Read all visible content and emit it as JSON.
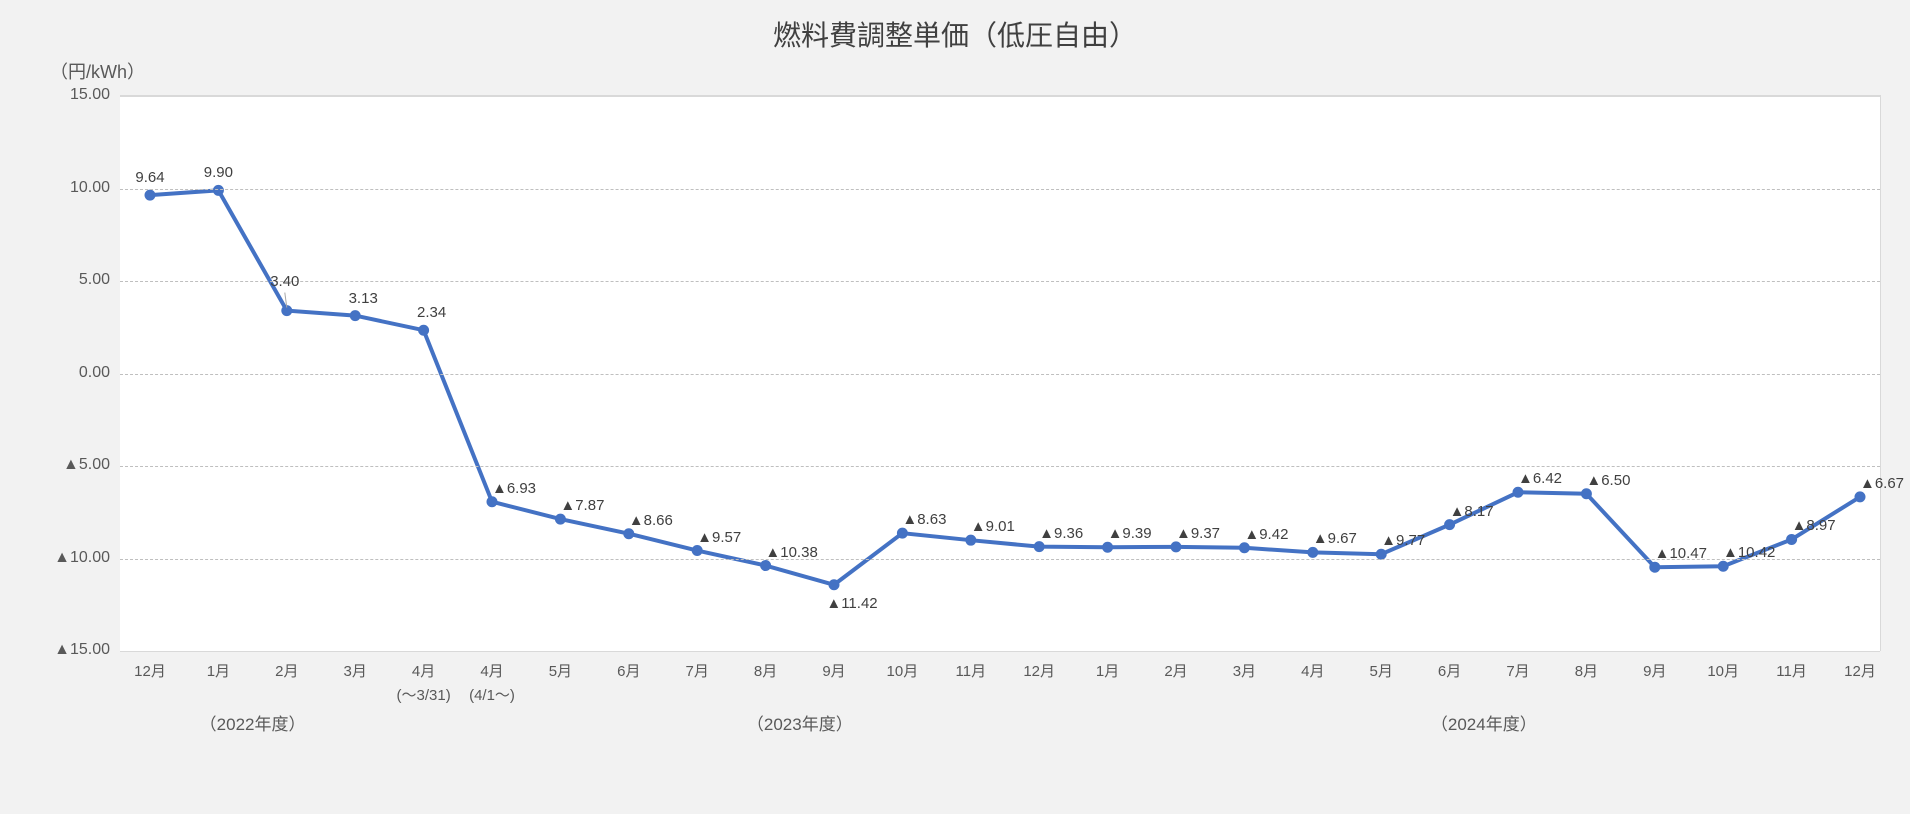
{
  "chart": {
    "type": "line",
    "title": "燃料費調整単価（低圧自由）",
    "y_unit_label": "（円/kWh）",
    "background_color": "#f2f2f2",
    "plot_background_color": "#ffffff",
    "grid_color": "#bfbfbf",
    "border_color": "#d9d9d9",
    "text_color": "#595959",
    "line_color": "#4472c4",
    "line_width": 4,
    "marker": {
      "style": "circle",
      "radius": 5,
      "fill": "#4472c4"
    },
    "title_fontsize": 28,
    "tick_fontsize": 16,
    "label_fontsize": 15,
    "year_fontsize": 17,
    "y_axis": {
      "min": -15,
      "max": 15,
      "tick_step": 5,
      "ticks": [
        15,
        10,
        5,
        0,
        -5,
        -10,
        -15
      ],
      "tick_labels": [
        "15.00",
        "10.00",
        "5.00",
        "0.00",
        "▲5.00",
        "▲10.00",
        "▲15.00"
      ]
    },
    "x_axis": {
      "categories": [
        "12月",
        "1月",
        "2月",
        "3月",
        "4月",
        "4月",
        "5月",
        "6月",
        "7月",
        "8月",
        "9月",
        "10月",
        "11月",
        "12月",
        "1月",
        "2月",
        "3月",
        "4月",
        "5月",
        "6月",
        "7月",
        "8月",
        "9月",
        "10月",
        "11月",
        "12月"
      ],
      "sub_labels": {
        "4": "(～3/31)",
        "5": "(4/1～)"
      },
      "year_groups": [
        {
          "label": "（2022年度）",
          "center_index": 1.5
        },
        {
          "label": "（2023年度）",
          "center_index": 9.5
        },
        {
          "label": "（2024年度）",
          "center_index": 19.5
        }
      ]
    },
    "series": {
      "values": [
        9.64,
        9.9,
        3.4,
        3.13,
        2.34,
        -6.93,
        -7.87,
        -8.66,
        -9.57,
        -10.38,
        -11.42,
        -8.63,
        -9.01,
        -9.36,
        -9.39,
        -9.37,
        -9.42,
        -9.67,
        -9.77,
        -8.17,
        -6.42,
        -6.5,
        -10.47,
        -10.42,
        -8.97,
        -6.67
      ],
      "data_labels": [
        "9.64",
        "9.90",
        "3.40",
        "3.13",
        "2.34",
        "▲6.93",
        "▲7.87",
        "▲8.66",
        "▲9.57",
        "▲10.38",
        "▲11.42",
        "▲8.63",
        "▲9.01",
        "▲9.36",
        "▲9.39",
        "▲9.37",
        "▲9.42",
        "▲9.67",
        "▲9.77",
        "▲8.17",
        "▲6.42",
        "▲6.50",
        "▲10.47",
        "▲10.42",
        "▲8.97",
        "▲6.67"
      ],
      "label_position": [
        {
          "dx": 0,
          "dy": -18
        },
        {
          "dx": 0,
          "dy": -18
        },
        {
          "dx": -2,
          "dy": -30,
          "lead": true
        },
        {
          "dx": 8,
          "dy": -18
        },
        {
          "dx": 8,
          "dy": -18
        },
        {
          "dx": 22,
          "dy": -14
        },
        {
          "dx": 22,
          "dy": -14
        },
        {
          "dx": 22,
          "dy": -14
        },
        {
          "dx": 22,
          "dy": -14
        },
        {
          "dx": 26,
          "dy": -14
        },
        {
          "dx": 18,
          "dy": 18
        },
        {
          "dx": 22,
          "dy": -14
        },
        {
          "dx": 22,
          "dy": -14
        },
        {
          "dx": 22,
          "dy": -14
        },
        {
          "dx": 22,
          "dy": -14
        },
        {
          "dx": 22,
          "dy": -14
        },
        {
          "dx": 22,
          "dy": -14
        },
        {
          "dx": 22,
          "dy": -14
        },
        {
          "dx": 22,
          "dy": -14
        },
        {
          "dx": 22,
          "dy": -14
        },
        {
          "dx": 22,
          "dy": -14
        },
        {
          "dx": 22,
          "dy": -14
        },
        {
          "dx": 26,
          "dy": -14
        },
        {
          "dx": 26,
          "dy": -14
        },
        {
          "dx": 22,
          "dy": -14
        },
        {
          "dx": 22,
          "dy": -14
        }
      ]
    }
  }
}
